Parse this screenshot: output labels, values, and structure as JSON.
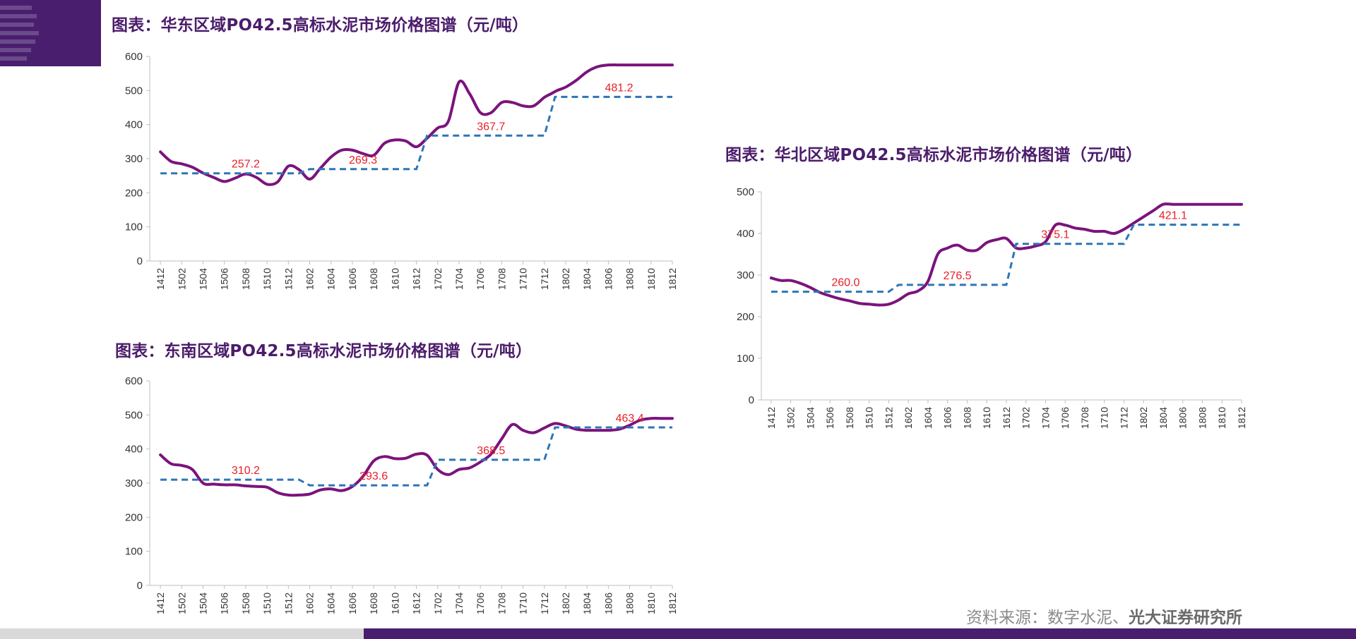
{
  "source": {
    "prefix": "资料来源：数字水泥、",
    "org": "光大证券研究所"
  },
  "chart_data": [
    {
      "type": "line",
      "title": "图表：华东区域PO42.5高标水泥市场价格图谱（元/吨）",
      "xlabel": "",
      "ylabel": "",
      "ylim": [
        0,
        600
      ],
      "yticks": [
        0,
        100,
        200,
        300,
        400,
        500,
        600
      ],
      "categories": [
        "1412",
        "1502",
        "1504",
        "1506",
        "1508",
        "1510",
        "1512",
        "1602",
        "1604",
        "1606",
        "1608",
        "1610",
        "1612",
        "1702",
        "1704",
        "1706",
        "1708",
        "1710",
        "1712",
        "1802",
        "1804",
        "1806",
        "1808",
        "1810",
        "1812"
      ],
      "series": [
        {
          "name": "",
          "color": "#7b137d",
          "style": "solid",
          "x": [
            0,
            0.5,
            1,
            1.5,
            2,
            2.5,
            3,
            3.5,
            4,
            4.5,
            5,
            5.5,
            6,
            6.5,
            7,
            7.5,
            8,
            8.5,
            9,
            9.5,
            10,
            10.5,
            11,
            11.5,
            12,
            12.5,
            13,
            13.5,
            14,
            14.5,
            15,
            15.5,
            16,
            16.5,
            17,
            17.5,
            18,
            18.3,
            18.6,
            19,
            19.5,
            20,
            20.5,
            21,
            21.5,
            22,
            22.5,
            23,
            23.5,
            24
          ],
          "y": [
            320,
            292,
            285,
            275,
            258,
            245,
            233,
            243,
            255,
            245,
            225,
            232,
            278,
            268,
            240,
            272,
            305,
            325,
            325,
            315,
            310,
            345,
            355,
            352,
            335,
            360,
            390,
            410,
            525,
            490,
            435,
            435,
            465,
            465,
            455,
            455,
            480,
            490,
            500,
            510,
            530,
            555,
            570,
            575,
            575,
            575,
            575,
            575,
            575,
            575
          ]
        },
        {
          "name": "",
          "color": "#2e75b6",
          "style": "dashed",
          "x": [
            0,
            6.5,
            7,
            12,
            12.5,
            18,
            18.5,
            24
          ],
          "y": [
            257.2,
            257.2,
            269.3,
            269.3,
            367.7,
            367.7,
            481.2,
            481.2
          ]
        }
      ],
      "annotations": [
        {
          "x": 4,
          "y": 257.2,
          "text": "257.2"
        },
        {
          "x": 9.5,
          "y": 269.3,
          "text": "269.3"
        },
        {
          "x": 15.5,
          "y": 367.7,
          "text": "367.7"
        },
        {
          "x": 21.5,
          "y": 481.2,
          "text": "481.2"
        }
      ]
    },
    {
      "type": "line",
      "title": "图表：东南区域PO42.5高标水泥市场价格图谱（元/吨）",
      "xlabel": "",
      "ylabel": "",
      "ylim": [
        0,
        600
      ],
      "yticks": [
        0,
        100,
        200,
        300,
        400,
        500,
        600
      ],
      "categories": [
        "1412",
        "1502",
        "1504",
        "1506",
        "1508",
        "1510",
        "1512",
        "1602",
        "1604",
        "1606",
        "1608",
        "1610",
        "1612",
        "1702",
        "1704",
        "1706",
        "1708",
        "1710",
        "1712",
        "1802",
        "1804",
        "1806",
        "1808",
        "1810",
        "1812"
      ],
      "series": [
        {
          "name": "",
          "color": "#7b137d",
          "style": "solid",
          "x": [
            0,
            0.5,
            1,
            1.5,
            2,
            2.5,
            3,
            3.5,
            4,
            4.5,
            5,
            5.5,
            6,
            6.5,
            7,
            7.5,
            8,
            8.5,
            9,
            9.5,
            10,
            10.5,
            11,
            11.5,
            12,
            12.5,
            13,
            13.5,
            14,
            14.5,
            15,
            15.5,
            16,
            16.5,
            17,
            17.5,
            18,
            18.5,
            19,
            19.5,
            20,
            20.5,
            21,
            21.5,
            22,
            22.5,
            23,
            23.5,
            24
          ],
          "y": [
            383,
            357,
            352,
            340,
            300,
            297,
            295,
            295,
            292,
            290,
            288,
            272,
            265,
            265,
            268,
            280,
            283,
            278,
            290,
            320,
            365,
            378,
            372,
            373,
            385,
            382,
            340,
            325,
            340,
            345,
            362,
            385,
            430,
            472,
            455,
            448,
            462,
            475,
            468,
            458,
            455,
            455,
            455,
            458,
            470,
            485,
            490,
            490,
            490
          ],
          "note": ""
        },
        {
          "name": "",
          "color": "#2e75b6",
          "style": "dashed",
          "x": [
            0,
            6.5,
            7,
            12.5,
            13,
            18,
            18.5,
            24
          ],
          "y": [
            310.2,
            310.2,
            293.6,
            293.6,
            368.5,
            368.5,
            463.4,
            463.4
          ]
        }
      ],
      "annotations": [
        {
          "x": 4,
          "y": 310.2,
          "text": "310.2"
        },
        {
          "x": 10,
          "y": 293.6,
          "text": "293.6"
        },
        {
          "x": 15.5,
          "y": 368.5,
          "text": "368.5"
        },
        {
          "x": 22,
          "y": 463.4,
          "text": "463.4"
        }
      ]
    },
    {
      "type": "line",
      "title": "图表：华北区域PO42.5高标水泥市场价格图谱（元/吨）",
      "xlabel": "",
      "ylabel": "",
      "ylim": [
        0,
        500
      ],
      "yticks": [
        0,
        100,
        200,
        300,
        400,
        500
      ],
      "categories": [
        "1412",
        "1502",
        "1504",
        "1506",
        "1508",
        "1510",
        "1512",
        "1602",
        "1604",
        "1606",
        "1608",
        "1610",
        "1612",
        "1702",
        "1704",
        "1706",
        "1708",
        "1710",
        "1712",
        "1802",
        "1804",
        "1806",
        "1808",
        "1810",
        "1812"
      ],
      "series": [
        {
          "name": "",
          "color": "#7b137d",
          "style": "solid",
          "x": [
            0,
            0.5,
            1,
            1.5,
            2,
            2.5,
            3,
            3.5,
            4,
            4.5,
            5,
            5.5,
            6,
            6.5,
            7,
            7.5,
            8,
            8.5,
            9,
            9.5,
            10,
            10.5,
            11,
            11.5,
            12,
            12.5,
            13,
            13.5,
            14,
            14.5,
            15,
            15.5,
            16,
            16.5,
            17,
            17.5,
            18,
            18.5,
            19,
            19.5,
            20,
            20.5,
            21,
            21.5,
            22,
            22.5,
            23,
            23.5,
            24
          ],
          "y": [
            293,
            287,
            287,
            280,
            270,
            258,
            250,
            243,
            238,
            232,
            230,
            228,
            230,
            240,
            255,
            262,
            285,
            350,
            365,
            372,
            360,
            360,
            378,
            385,
            388,
            365,
            365,
            370,
            380,
            420,
            420,
            413,
            410,
            405,
            405,
            400,
            410,
            425,
            440,
            455,
            470,
            470,
            470,
            470,
            470,
            470,
            470,
            470,
            470
          ]
        },
        {
          "name": "",
          "color": "#2e75b6",
          "style": "dashed",
          "x": [
            0,
            6,
            6.5,
            12,
            12.5,
            18,
            18.5,
            24
          ],
          "y": [
            260.0,
            260.0,
            276.5,
            276.5,
            375.1,
            375.1,
            421.1,
            421.1
          ]
        }
      ],
      "annotations": [
        {
          "x": 3.8,
          "y": 260.0,
          "text": "260.0"
        },
        {
          "x": 9.5,
          "y": 276.5,
          "text": "276.5"
        },
        {
          "x": 14.5,
          "y": 375.1,
          "text": "375.1"
        },
        {
          "x": 20.5,
          "y": 421.1,
          "text": "421.1"
        }
      ]
    }
  ]
}
